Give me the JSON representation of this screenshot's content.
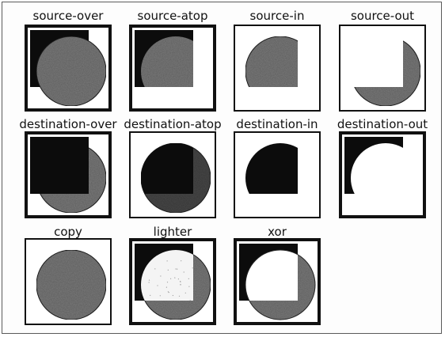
{
  "colors": {
    "square": "#0c0c0c",
    "circle": "#777777",
    "circle_dark": "#474747",
    "background": "#ffffff",
    "box_border": "#111111"
  },
  "cells": [
    {
      "label": "source-over",
      "op": "source-over",
      "border": "thick"
    },
    {
      "label": "source-atop",
      "op": "source-atop",
      "border": "thick"
    },
    {
      "label": "source-in",
      "op": "source-in",
      "border": "thin"
    },
    {
      "label": "source-out",
      "op": "source-out",
      "border": "thin"
    },
    {
      "label": "destination-over",
      "op": "destination-over",
      "border": "thick"
    },
    {
      "label": "destination-atop",
      "op": "destination-atop",
      "border": "thin"
    },
    {
      "label": "destination-in",
      "op": "destination-in",
      "border": "thin"
    },
    {
      "label": "destination-out",
      "op": "destination-out",
      "border": "thick"
    },
    {
      "label": "copy",
      "op": "copy",
      "border": "thin"
    },
    {
      "label": "lighter",
      "op": "lighter",
      "border": "thick"
    },
    {
      "label": "xor",
      "op": "xor",
      "border": "thick"
    }
  ]
}
